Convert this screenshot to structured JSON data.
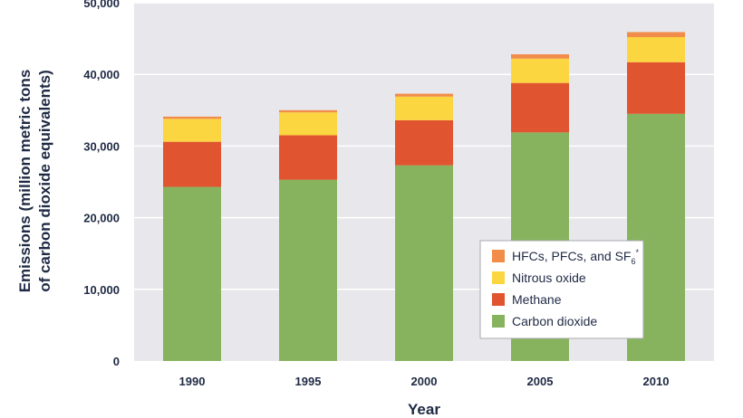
{
  "chart_data": {
    "type": "bar",
    "stacked": true,
    "categories": [
      "1990",
      "1995",
      "2000",
      "2005",
      "2010"
    ],
    "series": [
      {
        "name": "Carbon dioxide",
        "values": [
          24300,
          25300,
          27300,
          31900,
          34500
        ],
        "color": "#88b35e"
      },
      {
        "name": "Methane",
        "values": [
          6300,
          6200,
          6300,
          6900,
          7200
        ],
        "color": "#e05530"
      },
      {
        "name": "Nitrous oxide",
        "values": [
          3200,
          3200,
          3300,
          3400,
          3500
        ],
        "color": "#fcd640"
      },
      {
        "name": "HFCs, PFCs, and SF",
        "name_subscript": "6",
        "name_suffix": "*",
        "values": [
          300,
          300,
          400,
          600,
          700
        ],
        "color": "#f28c49"
      }
    ],
    "ylim": [
      0,
      50000
    ],
    "yticks": [
      0,
      10000,
      20000,
      30000,
      40000,
      50000
    ],
    "ytick_labels": [
      "0",
      "10,000",
      "20,000",
      "30,000",
      "40,000",
      "50,000"
    ],
    "xlabel": "Year",
    "ylabel_lines": [
      "Emissions (million metric tons",
      "of carbon dioxide equivalents)"
    ],
    "legend_order": [
      "HFCs, PFCs, and SF",
      "Nitrous oxide",
      "Methane",
      "Carbon dioxide"
    ],
    "legend_position": "bottom-right",
    "grid": "horizontal",
    "colors": {
      "plot_bg": "#e8e8ec",
      "grid": "#ffffff",
      "text": "#1f2a44"
    }
  }
}
